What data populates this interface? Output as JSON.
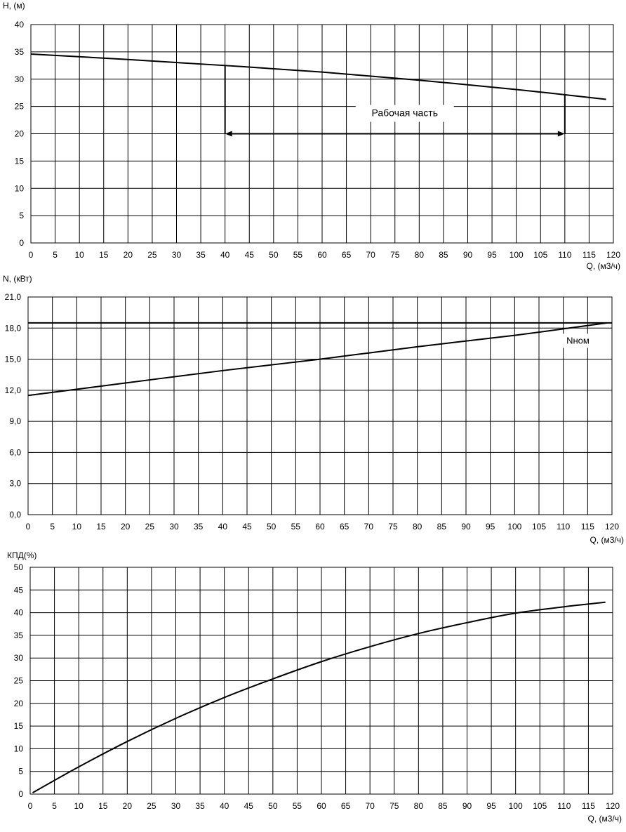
{
  "chart_data": [
    {
      "type": "line",
      "ylabel": "H, (м)",
      "xlabel": "Q, (м3/ч)",
      "xlim": [
        0,
        120
      ],
      "ylim": [
        0,
        40
      ],
      "x_ticks": [
        "0",
        "5",
        "10",
        "15",
        "20",
        "25",
        "30",
        "35",
        "40",
        "45",
        "50",
        "55",
        "60",
        "65",
        "70",
        "75",
        "80",
        "85",
        "90",
        "95",
        "100",
        "105",
        "110",
        "115",
        "120"
      ],
      "y_ticks": [
        "0",
        "5",
        "10",
        "15",
        "20",
        "25",
        "30",
        "35",
        "40"
      ],
      "grid": true,
      "series": [
        {
          "x": [
            0,
            20,
            40,
            60,
            80,
            100,
            118.5
          ],
          "y": [
            34.6,
            33.6,
            32.5,
            31.3,
            29.8,
            28.1,
            26.3
          ]
        }
      ],
      "annotations": [
        {
          "text": "Рабочая часть",
          "type": "range-arrow",
          "x_from": 40,
          "x_to": 110,
          "y": 20,
          "y_from_top": 32.5,
          "y_to_top": 27.1
        }
      ]
    },
    {
      "type": "line",
      "ylabel": "N, (кВт)",
      "xlabel": "Q, (м3/ч)",
      "xlim": [
        0,
        120
      ],
      "ylim": [
        0,
        21
      ],
      "x_ticks": [
        "0",
        "5",
        "10",
        "15",
        "20",
        "25",
        "30",
        "35",
        "40",
        "45",
        "50",
        "55",
        "60",
        "65",
        "70",
        "75",
        "80",
        "85",
        "90",
        "95",
        "100",
        "105",
        "110",
        "115",
        "120"
      ],
      "y_ticks": [
        "0,0",
        "3,0",
        "6,0",
        "9,0",
        "12,0",
        "15,0",
        "18,0",
        "21,0"
      ],
      "grid": true,
      "series": [
        {
          "x": [
            0,
            20,
            40,
            60,
            80,
            100,
            119
          ],
          "y": [
            11.5,
            12.7,
            13.9,
            15.0,
            16.2,
            17.3,
            18.5
          ]
        },
        {
          "name": "Nном",
          "x": [
            0,
            120
          ],
          "y": [
            18.5,
            18.5
          ]
        }
      ],
      "annotations": [
        {
          "text": "Nном",
          "x": 113,
          "y": 16.5
        }
      ]
    },
    {
      "type": "line",
      "ylabel": "КПД(%)",
      "xlabel": "Q, (м3/ч)",
      "xlim": [
        0,
        120
      ],
      "ylim": [
        0,
        50
      ],
      "x_ticks": [
        "0",
        "5",
        "10",
        "15",
        "20",
        "25",
        "30",
        "35",
        "40",
        "45",
        "50",
        "55",
        "60",
        "65",
        "70",
        "75",
        "80",
        "85",
        "90",
        "95",
        "100",
        "105",
        "110",
        "115",
        "120"
      ],
      "y_ticks": [
        "0",
        "5",
        "10",
        "15",
        "20",
        "25",
        "30",
        "35",
        "40",
        "45",
        "50"
      ],
      "grid": true,
      "series": [
        {
          "x": [
            0.5,
            10,
            20,
            30,
            40,
            50,
            60,
            70,
            80,
            90,
            100,
            110,
            118.5
          ],
          "y": [
            0.3,
            6.0,
            11.6,
            16.7,
            21.3,
            25.4,
            29.2,
            32.5,
            35.4,
            37.8,
            39.9,
            41.3,
            42.3
          ]
        }
      ]
    }
  ],
  "colors": {
    "line": "#000000",
    "grid": "#000000",
    "background": "#ffffff"
  }
}
